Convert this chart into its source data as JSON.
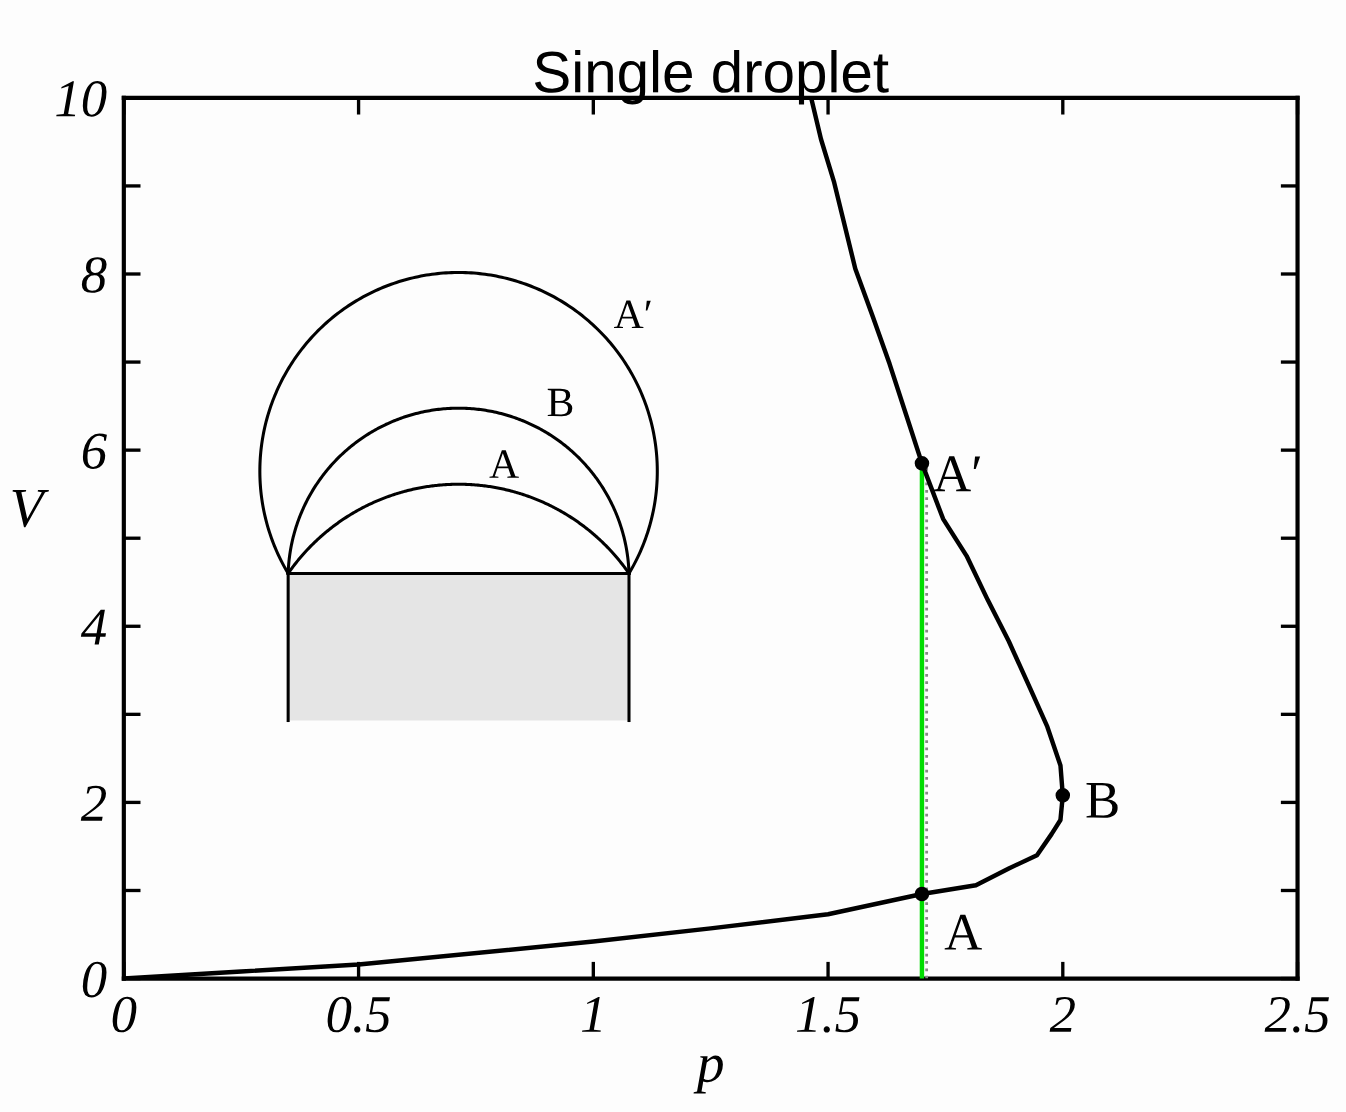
{
  "chart_data": {
    "type": "line",
    "title": "Single droplet",
    "xlabel": "p",
    "ylabel": "V",
    "xlim": [
      0,
      2.5
    ],
    "ylim": [
      0,
      10
    ],
    "xticks": [
      0,
      0.5,
      1,
      1.5,
      2,
      2.5
    ],
    "yticks": [
      0,
      {
        "value": 1,
        "label": null
      },
      2,
      {
        "value": 3,
        "label": null
      },
      4,
      {
        "value": 5,
        "label": null
      },
      6,
      {
        "value": 7,
        "label": null
      },
      8,
      {
        "value": 9,
        "label": null
      },
      10
    ],
    "grid": false,
    "legend": false,
    "series": [
      {
        "type": "line",
        "color": "#00dd00",
        "x": [
          1.7,
          1.7
        ],
        "values": [
          0,
          5.85
        ]
      },
      {
        "type": "line",
        "color": "#888888",
        "line_style": "dotted",
        "x": [
          1.71,
          1.71
        ],
        "values": [
          0,
          5.85
        ]
      },
      {
        "type": "line",
        "color": "#000000",
        "x": [
          0,
          0.25,
          0.5,
          1.0,
          1.25,
          1.5,
          1.7,
          1.815,
          1.885,
          1.945,
          1.976,
          1.995,
          2.0,
          1.995,
          1.967,
          1.93,
          1.885,
          1.84,
          1.795,
          1.745,
          1.7,
          1.667,
          1.631,
          1.595,
          1.558,
          1.513,
          1.485,
          1.464
        ],
        "values": [
          0,
          0.08,
          0.16,
          0.42,
          0.57,
          0.73,
          0.96,
          1.06,
          1.25,
          1.4,
          1.64,
          1.8,
          2.08,
          2.42,
          2.86,
          3.3,
          3.83,
          4.3,
          4.8,
          5.22,
          5.85,
          6.39,
          6.98,
          7.52,
          8.06,
          9.04,
          9.53,
          10
        ]
      },
      {
        "type": "scatter",
        "color": "#000000",
        "marker": "circle",
        "x": [
          1.7,
          2.0,
          1.7
        ],
        "values": [
          0.96,
          2.08,
          5.85
        ]
      }
    ],
    "annotations": [
      "A",
      "B",
      "A′",
      "A",
      "B",
      "A′"
    ]
  }
}
